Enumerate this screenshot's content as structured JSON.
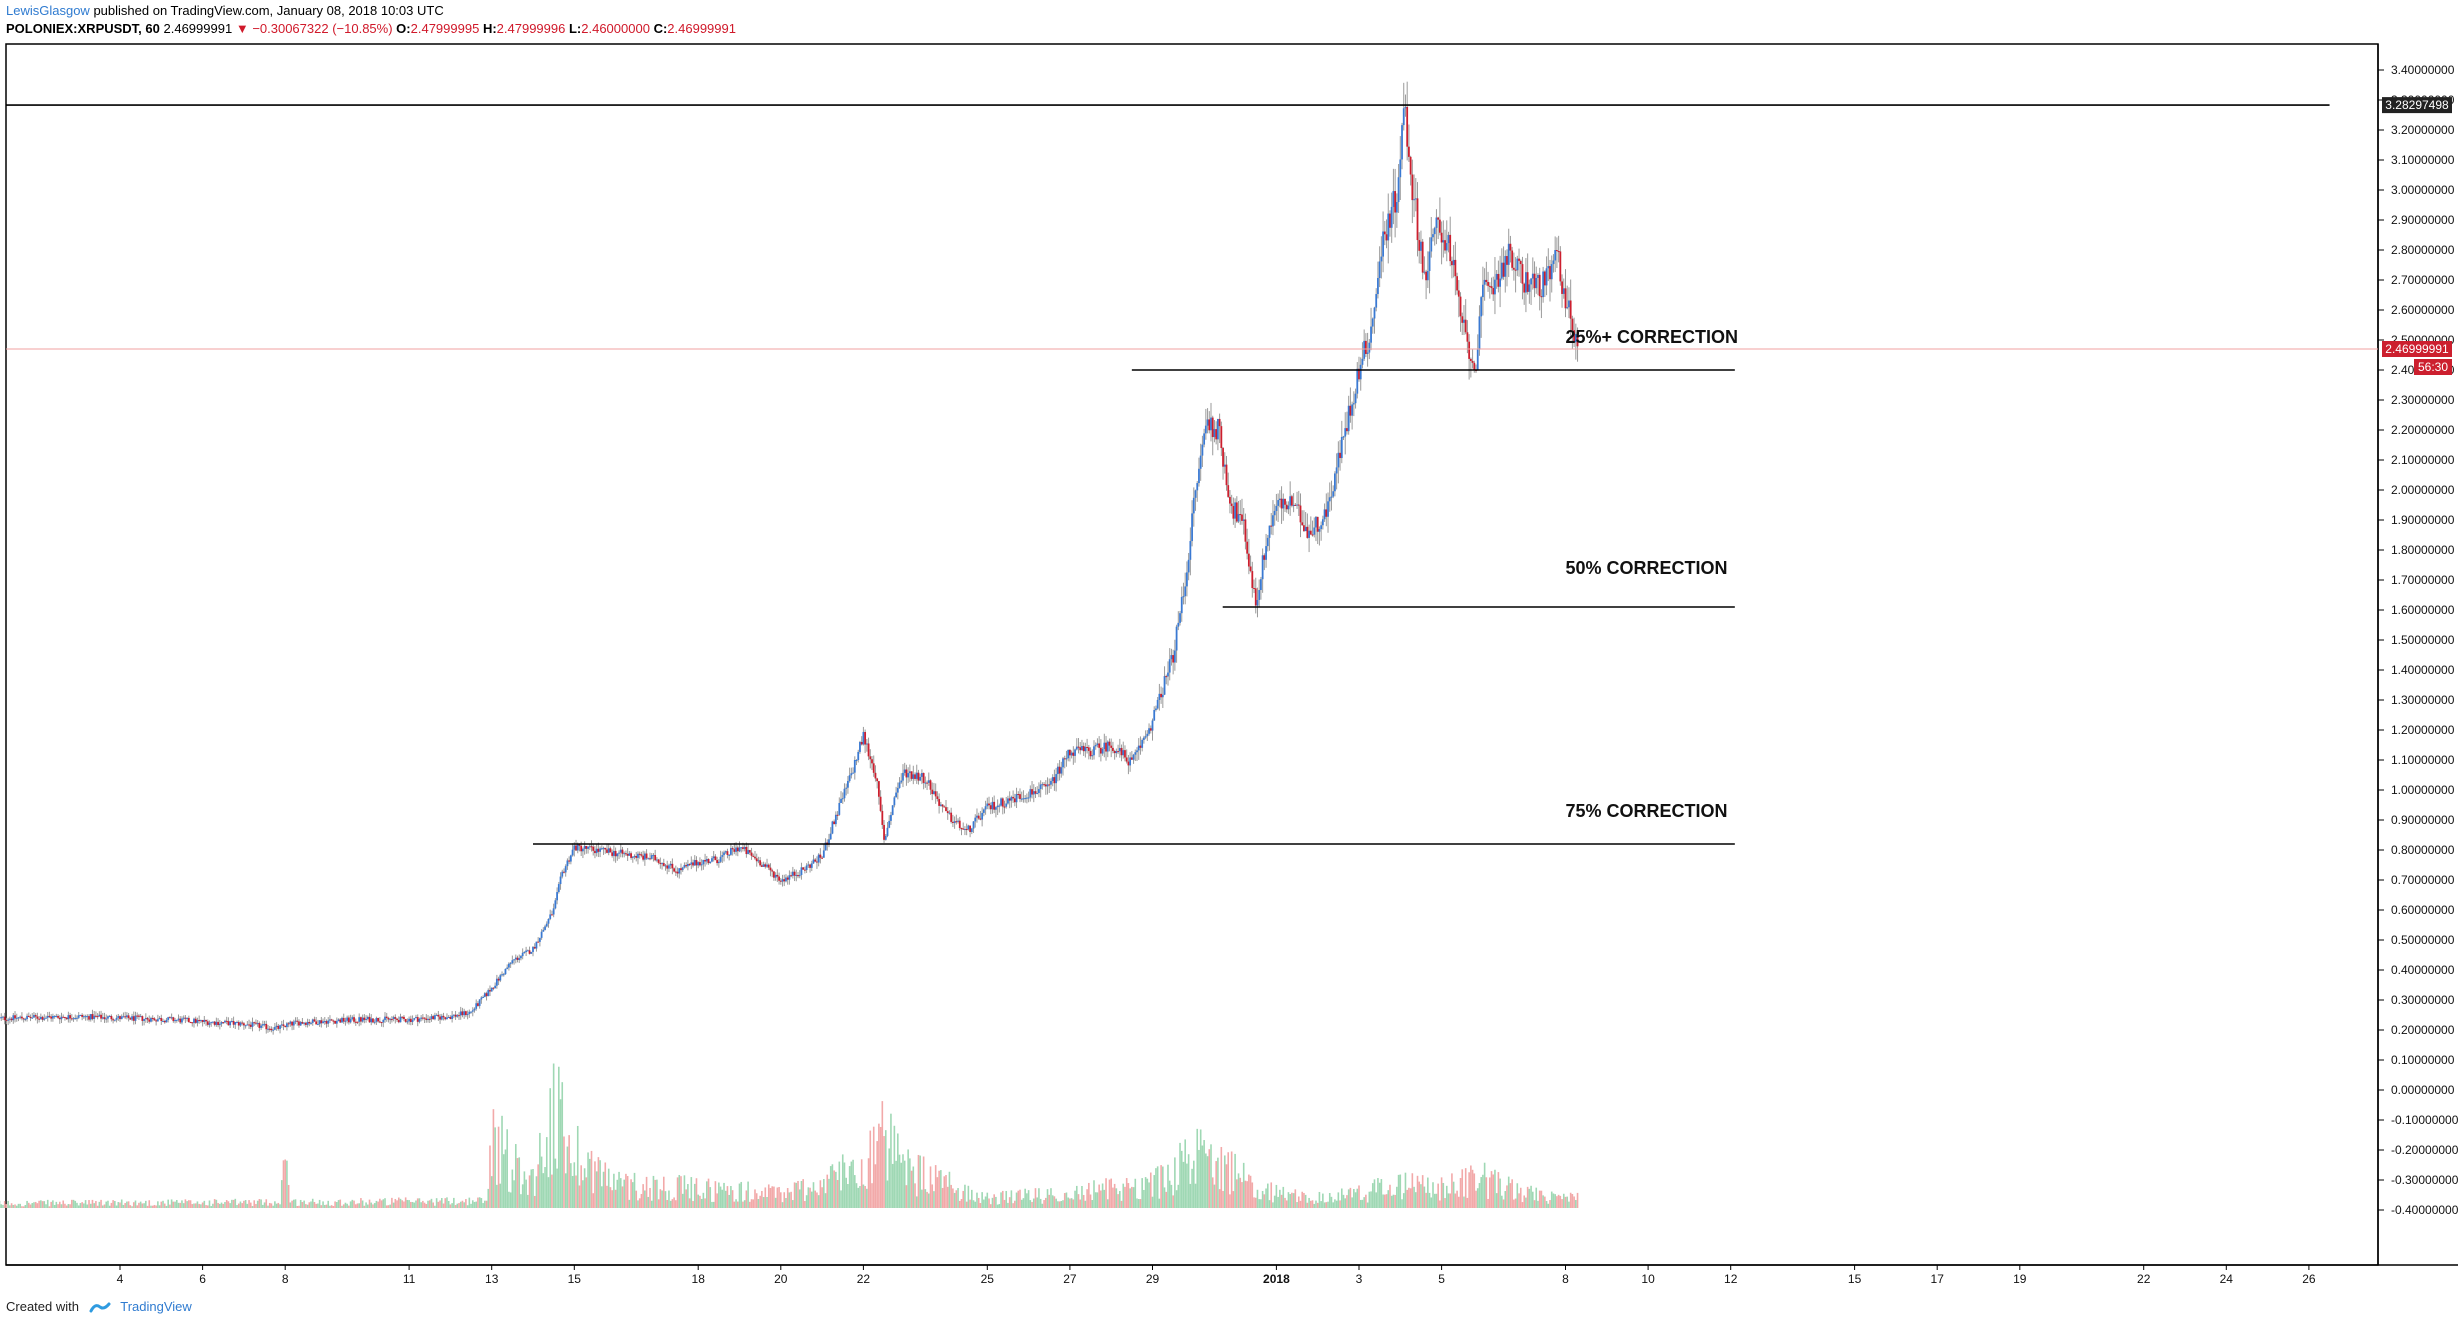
{
  "header": {
    "author": "LewisGlasgow",
    "published_text": "published on TradingView.com, January 08, 2018 10:03 UTC",
    "symbol": "POLONIEX:XRPUSDT, 60",
    "last": "2.46999991",
    "change": "−0.30067322 (−10.85%)",
    "o_label": "O:",
    "o_value": "2.47999995",
    "h_label": "H:",
    "h_value": "2.47999996",
    "l_label": "L:",
    "l_value": "2.46000000",
    "c_label": "C:",
    "c_value": "2.46999991"
  },
  "footer": {
    "created_with": "Created with",
    "brand": "TradingView"
  },
  "colors": {
    "up": "#3a79d2",
    "down": "#cc1f2e",
    "wick": "#9a9a9a",
    "vol_up": "#9fd8b4",
    "vol_down": "#f2a9a9",
    "price_tag": "#cc1f2e"
  },
  "chart_data": {
    "type": "candlestick",
    "y_ticks": [
      "3.40000000",
      "3.30000000",
      "3.20000000",
      "3.10000000",
      "3.00000000",
      "2.90000000",
      "2.80000000",
      "2.70000000",
      "2.60000000",
      "2.50000000",
      "2.40000000",
      "2.30000000",
      "2.20000000",
      "2.10000000",
      "2.00000000",
      "1.90000000",
      "1.80000000",
      "1.70000000",
      "1.60000000",
      "1.50000000",
      "1.40000000",
      "1.30000000",
      "1.20000000",
      "1.10000000",
      "1.00000000",
      "0.90000000",
      "0.80000000",
      "0.70000000",
      "0.60000000",
      "0.50000000",
      "0.40000000",
      "0.30000000",
      "0.20000000",
      "0.10000000",
      "0.00000000",
      "-0.10000000",
      "-0.20000000",
      "-0.30000000",
      "-0.40000000"
    ],
    "y_range": [
      -0.4,
      3.4
    ],
    "x_ticks": [
      {
        "label": "4",
        "day": 4
      },
      {
        "label": "6",
        "day": 6
      },
      {
        "label": "8",
        "day": 8
      },
      {
        "label": "11",
        "day": 11
      },
      {
        "label": "13",
        "day": 13
      },
      {
        "label": "15",
        "day": 15
      },
      {
        "label": "18",
        "day": 18
      },
      {
        "label": "20",
        "day": 20
      },
      {
        "label": "22",
        "day": 22
      },
      {
        "label": "25",
        "day": 25
      },
      {
        "label": "27",
        "day": 27
      },
      {
        "label": "29",
        "day": 29
      },
      {
        "label": "2018",
        "day": 32
      },
      {
        "label": "3",
        "day": 34
      },
      {
        "label": "5",
        "day": 36
      },
      {
        "label": "8",
        "day": 39
      },
      {
        "label": "10",
        "day": 41
      },
      {
        "label": "12",
        "day": 43
      },
      {
        "label": "15",
        "day": 46
      },
      {
        "label": "17",
        "day": 48
      },
      {
        "label": "19",
        "day": 50
      },
      {
        "label": "22",
        "day": 53
      },
      {
        "label": "24",
        "day": 55
      },
      {
        "label": "26",
        "day": 57
      }
    ],
    "price_path": [
      [
        1.0,
        0.238
      ],
      [
        2.0,
        0.242
      ],
      [
        3.0,
        0.245
      ],
      [
        4.0,
        0.24
      ],
      [
        5.0,
        0.236
      ],
      [
        6.0,
        0.228
      ],
      [
        7.0,
        0.22
      ],
      [
        7.8,
        0.205
      ],
      [
        8.0,
        0.215
      ],
      [
        8.3,
        0.225
      ],
      [
        9.0,
        0.23
      ],
      [
        10.0,
        0.235
      ],
      [
        11.0,
        0.235
      ],
      [
        12.0,
        0.245
      ],
      [
        12.5,
        0.26
      ],
      [
        13.0,
        0.34
      ],
      [
        13.5,
        0.43
      ],
      [
        14.0,
        0.47
      ],
      [
        14.5,
        0.6
      ],
      [
        14.7,
        0.72
      ],
      [
        15.0,
        0.81
      ],
      [
        15.5,
        0.8
      ],
      [
        16.0,
        0.79
      ],
      [
        17.0,
        0.77
      ],
      [
        17.5,
        0.73
      ],
      [
        18.0,
        0.76
      ],
      [
        18.5,
        0.77
      ],
      [
        19.0,
        0.81
      ],
      [
        19.5,
        0.76
      ],
      [
        20.0,
        0.7
      ],
      [
        20.5,
        0.73
      ],
      [
        21.0,
        0.78
      ],
      [
        21.3,
        0.9
      ],
      [
        21.7,
        1.05
      ],
      [
        22.0,
        1.18
      ],
      [
        22.3,
        1.05
      ],
      [
        22.5,
        0.83
      ],
      [
        22.8,
        1.0
      ],
      [
        23.0,
        1.06
      ],
      [
        23.5,
        1.04
      ],
      [
        24.0,
        0.92
      ],
      [
        24.5,
        0.86
      ],
      [
        25.0,
        0.94
      ],
      [
        26.0,
        0.99
      ],
      [
        26.5,
        1.01
      ],
      [
        27.0,
        1.13
      ],
      [
        27.5,
        1.13
      ],
      [
        28.0,
        1.15
      ],
      [
        28.5,
        1.09
      ],
      [
        29.0,
        1.23
      ],
      [
        29.5,
        1.45
      ],
      [
        29.8,
        1.7
      ],
      [
        30.0,
        1.95
      ],
      [
        30.3,
        2.23
      ],
      [
        30.6,
        2.2
      ],
      [
        30.9,
        1.95
      ],
      [
        31.2,
        1.88
      ],
      [
        31.5,
        1.62
      ],
      [
        31.8,
        1.86
      ],
      [
        32.0,
        1.95
      ],
      [
        32.4,
        1.95
      ],
      [
        32.8,
        1.86
      ],
      [
        33.2,
        1.92
      ],
      [
        33.5,
        2.1
      ],
      [
        34.0,
        2.4
      ],
      [
        34.3,
        2.54
      ],
      [
        34.6,
        2.85
      ],
      [
        34.9,
        2.98
      ],
      [
        35.1,
        3.28
      ],
      [
        35.3,
        3.0
      ],
      [
        35.6,
        2.7
      ],
      [
        35.9,
        2.9
      ],
      [
        36.2,
        2.8
      ],
      [
        36.5,
        2.55
      ],
      [
        36.8,
        2.4
      ],
      [
        37.0,
        2.65
      ],
      [
        37.3,
        2.7
      ],
      [
        37.6,
        2.78
      ],
      [
        38.0,
        2.7
      ],
      [
        38.5,
        2.68
      ],
      [
        38.8,
        2.78
      ],
      [
        39.0,
        2.64
      ],
      [
        39.3,
        2.47
      ]
    ],
    "volume_path": [
      [
        1,
        0.01
      ],
      [
        7.9,
        0.012
      ],
      [
        8.0,
        0.2
      ],
      [
        8.1,
        0.012
      ],
      [
        12.9,
        0.015
      ],
      [
        13.0,
        0.16
      ],
      [
        13.5,
        0.09
      ],
      [
        14.0,
        0.06
      ],
      [
        14.5,
        0.2
      ],
      [
        15.0,
        0.12
      ],
      [
        16,
        0.05
      ],
      [
        18,
        0.04
      ],
      [
        20,
        0.03
      ],
      [
        21,
        0.05
      ],
      [
        22,
        0.1
      ],
      [
        22.5,
        0.14
      ],
      [
        23,
        0.08
      ],
      [
        24,
        0.05
      ],
      [
        25,
        0.02
      ],
      [
        27,
        0.03
      ],
      [
        28,
        0.04
      ],
      [
        29,
        0.05
      ],
      [
        30,
        0.1
      ],
      [
        30.6,
        0.12
      ],
      [
        31,
        0.07
      ],
      [
        32,
        0.03
      ],
      [
        33,
        0.02
      ],
      [
        34,
        0.03
      ],
      [
        35,
        0.05
      ],
      [
        36,
        0.04
      ],
      [
        37,
        0.06
      ],
      [
        38,
        0.03
      ],
      [
        39,
        0.02
      ]
    ],
    "horizontal_lines": [
      {
        "price": 3.282975,
        "x_from_day": 0.9,
        "x_to_day": 57.5
      },
      {
        "price": 2.4,
        "x_from_day": 28.5,
        "x_to_day": 43.1
      },
      {
        "price": 1.61,
        "x_from_day": 30.7,
        "x_to_day": 43.1
      },
      {
        "price": 0.82,
        "x_from_day": 14.0,
        "x_to_day": 43.1
      }
    ],
    "annotations": [
      {
        "text": "25%+ CORRECTION",
        "price": 2.49,
        "day": 39.0
      },
      {
        "text": "50% CORRECTION",
        "price": 1.72,
        "day": 39.0
      },
      {
        "text": "75% CORRECTION",
        "price": 0.91,
        "day": 39.0
      }
    ],
    "price_tags": [
      {
        "text": "3.28297498",
        "price": 3.282975,
        "style": "dark"
      },
      {
        "text": "2.46999991",
        "price": 2.47,
        "style": "red"
      },
      {
        "text": "56:30",
        "price": 2.41,
        "style": "red"
      }
    ],
    "current_price": 2.47
  }
}
